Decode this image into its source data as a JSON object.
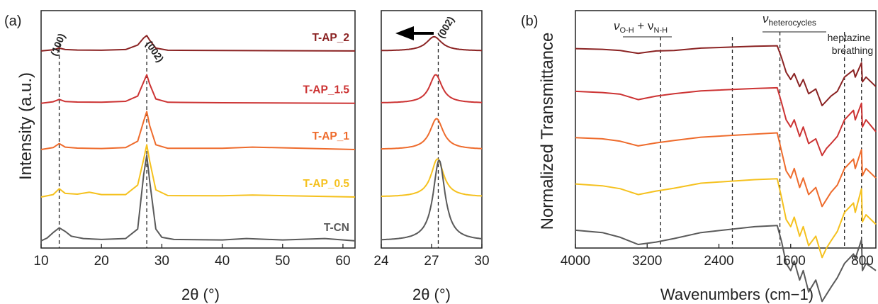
{
  "colors": {
    "T-AP_2": "#8b2323",
    "T-AP_1.5": "#cc3333",
    "T-AP_1": "#ee6b2c",
    "T-AP_0.5": "#f5c11e",
    "T-CN": "#5a5a5a"
  },
  "chart_data": [
    {
      "panel": "(a)",
      "type": "line",
      "xlabel": "2θ (°)",
      "ylabel": "Intensity (a.u.)",
      "xlim": [
        10,
        62
      ],
      "xticks": [
        "10",
        "20",
        "30",
        "40",
        "50",
        "60"
      ],
      "annotations": [
        "(100)",
        "(002)"
      ],
      "vlines": [
        13.0,
        27.5
      ],
      "series": [
        {
          "name": "T-AP_2",
          "offset": 0.83,
          "x": [
            10,
            12,
            13,
            14,
            16,
            20,
            24,
            26,
            27,
            27.5,
            28,
            29,
            31,
            40,
            62
          ],
          "y": [
            0,
            0.005,
            0.012,
            0.006,
            0.004,
            0.003,
            0.006,
            0.025,
            0.055,
            0.065,
            0.045,
            0.012,
            0.003,
            0.002,
            0
          ]
        },
        {
          "name": "T-AP_1.5",
          "offset": 0.61,
          "x": [
            10,
            12,
            13,
            14,
            16,
            20,
            24,
            26,
            27,
            27.5,
            28,
            29,
            31,
            40,
            62
          ],
          "y": [
            0,
            0.006,
            0.016,
            0.007,
            0.005,
            0.004,
            0.008,
            0.03,
            0.09,
            0.12,
            0.08,
            0.018,
            0.004,
            0.002,
            0
          ]
        },
        {
          "name": "T-AP_1",
          "offset": 0.415,
          "x": [
            10,
            12,
            13,
            14,
            16,
            20,
            24,
            26,
            27,
            27.5,
            28,
            29,
            31,
            40,
            45,
            62
          ],
          "y": [
            0,
            0.008,
            0.025,
            0.01,
            0.006,
            0.004,
            0.008,
            0.035,
            0.12,
            0.16,
            0.1,
            0.02,
            0.005,
            0.005,
            0.01,
            0
          ]
        },
        {
          "name": "T-AP_0.5",
          "offset": 0.215,
          "x": [
            10,
            12,
            13,
            14,
            16,
            18,
            20,
            24,
            26,
            27,
            27.5,
            28,
            29,
            31,
            40,
            45,
            62
          ],
          "y": [
            0,
            0.01,
            0.035,
            0.015,
            0.012,
            0.02,
            0.01,
            0.01,
            0.05,
            0.16,
            0.22,
            0.15,
            0.03,
            0.006,
            0.005,
            0.008,
            0
          ]
        },
        {
          "name": "T-CN",
          "offset": 0.03,
          "x": [
            10,
            11,
            12,
            13,
            14,
            15,
            17,
            20,
            24,
            26,
            27,
            27.5,
            28,
            29,
            30,
            32,
            40,
            44,
            50,
            57,
            62
          ],
          "y": [
            0,
            0.012,
            0.035,
            0.055,
            0.04,
            0.02,
            0.01,
            0.006,
            0.01,
            0.05,
            0.28,
            0.36,
            0.25,
            0.05,
            0.015,
            0.006,
            0.004,
            0.01,
            0.004,
            0.01,
            0
          ]
        }
      ]
    },
    {
      "panel": "",
      "type": "line",
      "xlabel": "2θ (°)",
      "xlim": [
        24,
        30
      ],
      "xticks": [
        "24",
        "27",
        "30"
      ],
      "annotations": [
        "(002)"
      ],
      "vline": 27.4,
      "series": [
        {
          "name": "T-AP_2",
          "peak": 27.15,
          "offset": 0.83,
          "height": 0.06,
          "width": 1.1
        },
        {
          "name": "T-AP_1.5",
          "peak": 27.25,
          "offset": 0.61,
          "height": 0.12,
          "width": 0.9
        },
        {
          "name": "T-AP_1",
          "peak": 27.3,
          "offset": 0.415,
          "height": 0.13,
          "width": 0.95
        },
        {
          "name": "T-AP_0.5",
          "peak": 27.35,
          "offset": 0.215,
          "height": 0.16,
          "width": 0.9
        },
        {
          "name": "T-CN",
          "peak": 27.45,
          "offset": 0.03,
          "height": 0.34,
          "width": 0.85
        }
      ]
    },
    {
      "panel": "(b)",
      "type": "line",
      "xlabel": "Wavenumbers (cm−1)",
      "ylabel": "Normalized Transmittance",
      "xlim": [
        4000,
        650
      ],
      "xticks": [
        "4000",
        "3200",
        "2400",
        "1600",
        "800"
      ],
      "annotations": {
        "oh_nh": {
          "main": "ν",
          "sub1": "O-H",
          "plus": " + ν",
          "sub2": "N-H"
        },
        "hetero": {
          "main": "ν",
          "sub": "heterocycles"
        },
        "breathing": [
          "heptazine",
          "breathing"
        ]
      },
      "vlines": [
        3050,
        2250,
        1720,
        1000,
        810
      ],
      "series": [
        {
          "name": "T-AP_2",
          "offset": 0.84,
          "x": [
            4000,
            3700,
            3500,
            3300,
            3100,
            2900,
            2600,
            2000,
            1750,
            1700,
            1650,
            1600,
            1560,
            1500,
            1460,
            1400,
            1320,
            1250,
            1200,
            1150,
            1080,
            1000,
            900,
            880,
            810,
            800,
            760,
            650
          ],
          "y": [
            0,
            -0.003,
            -0.008,
            -0.02,
            -0.01,
            -0.008,
            0.002,
            0.01,
            0.012,
            -0.04,
            -0.1,
            -0.13,
            -0.105,
            -0.16,
            -0.13,
            -0.19,
            -0.17,
            -0.24,
            -0.22,
            -0.2,
            -0.18,
            -0.12,
            -0.09,
            -0.12,
            -0.06,
            -0.14,
            -0.12,
            -0.16
          ]
        },
        {
          "name": "T-AP_1.5",
          "offset": 0.66,
          "x": [
            4000,
            3700,
            3500,
            3300,
            3100,
            2900,
            2600,
            2000,
            1750,
            1700,
            1650,
            1600,
            1560,
            1500,
            1460,
            1400,
            1320,
            1250,
            1200,
            1150,
            1080,
            1000,
            900,
            880,
            810,
            800,
            760,
            650
          ],
          "y": [
            0,
            -0.005,
            -0.012,
            -0.035,
            -0.02,
            -0.01,
            0.002,
            0.012,
            0.015,
            -0.05,
            -0.12,
            -0.15,
            -0.12,
            -0.19,
            -0.15,
            -0.22,
            -0.2,
            -0.27,
            -0.24,
            -0.22,
            -0.19,
            -0.12,
            -0.08,
            -0.12,
            -0.05,
            -0.15,
            -0.12,
            -0.17
          ]
        },
        {
          "name": "T-AP_1",
          "offset": 0.465,
          "x": [
            4000,
            3700,
            3500,
            3300,
            3100,
            2900,
            2600,
            2000,
            1750,
            1700,
            1650,
            1600,
            1560,
            1500,
            1460,
            1400,
            1320,
            1250,
            1200,
            1150,
            1080,
            1000,
            900,
            880,
            810,
            800,
            760,
            650
          ],
          "y": [
            0,
            -0.005,
            -0.015,
            -0.035,
            -0.022,
            -0.012,
            0.002,
            0.015,
            0.02,
            -0.06,
            -0.14,
            -0.17,
            -0.13,
            -0.21,
            -0.17,
            -0.24,
            -0.21,
            -0.29,
            -0.26,
            -0.23,
            -0.2,
            -0.13,
            -0.09,
            -0.13,
            -0.05,
            -0.16,
            -0.13,
            -0.17
          ]
        },
        {
          "name": "T-AP_0.5",
          "offset": 0.27,
          "x": [
            4000,
            3700,
            3500,
            3300,
            3100,
            2900,
            2600,
            2000,
            1750,
            1700,
            1650,
            1600,
            1560,
            1500,
            1460,
            1400,
            1320,
            1250,
            1200,
            1150,
            1080,
            1000,
            900,
            880,
            810,
            800,
            760,
            650
          ],
          "y": [
            0,
            -0.008,
            -0.02,
            -0.045,
            -0.03,
            -0.018,
            0.003,
            0.018,
            0.022,
            -0.06,
            -0.15,
            -0.18,
            -0.14,
            -0.22,
            -0.18,
            -0.26,
            -0.22,
            -0.31,
            -0.27,
            -0.24,
            -0.2,
            -0.12,
            -0.08,
            -0.12,
            -0.02,
            -0.16,
            -0.13,
            -0.17
          ]
        },
        {
          "name": "T-CN",
          "offset": 0.075,
          "x": [
            4000,
            3700,
            3500,
            3300,
            3100,
            2900,
            2600,
            2000,
            1750,
            1700,
            1650,
            1600,
            1560,
            1500,
            1460,
            1400,
            1320,
            1250,
            1200,
            1150,
            1080,
            1000,
            900,
            880,
            810,
            800,
            760,
            650
          ],
          "y": [
            0,
            -0.01,
            -0.03,
            -0.06,
            -0.05,
            -0.035,
            -0.01,
            0.015,
            0.02,
            -0.05,
            -0.14,
            -0.17,
            -0.13,
            -0.21,
            -0.17,
            -0.26,
            -0.21,
            -0.3,
            -0.27,
            -0.24,
            -0.2,
            -0.14,
            -0.1,
            -0.12,
            -0.04,
            -0.17,
            -0.14,
            -0.17
          ]
        }
      ]
    }
  ]
}
